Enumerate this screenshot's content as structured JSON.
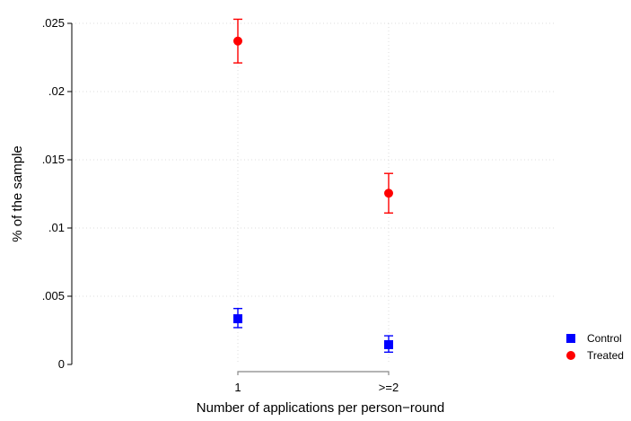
{
  "chart_data": {
    "type": "scatter",
    "xlabel": "Number of applications per person−round",
    "ylabel": "% of the sample",
    "categories": [
      "1",
      ">=2"
    ],
    "ylim": [
      0,
      0.025
    ],
    "yticks": [
      0,
      0.005,
      0.01,
      0.015,
      0.02,
      0.025
    ],
    "ytick_labels": [
      "0",
      ".005",
      ".01",
      ".015",
      ".02",
      ".025"
    ],
    "grid": true,
    "legend_position": "bottom-right",
    "series": [
      {
        "name": "Control",
        "color": "#0000ff",
        "marker": "square",
        "points": [
          {
            "category": "1",
            "value": 0.00335,
            "ci_low": 0.0027,
            "ci_high": 0.0041
          },
          {
            "category": ">=2",
            "value": 0.00145,
            "ci_low": 0.0009,
            "ci_high": 0.0021
          }
        ]
      },
      {
        "name": "Treated",
        "color": "#ff0000",
        "marker": "circle",
        "points": [
          {
            "category": "1",
            "value": 0.0237,
            "ci_low": 0.0221,
            "ci_high": 0.0253
          },
          {
            "category": ">=2",
            "value": 0.01255,
            "ci_low": 0.0111,
            "ci_high": 0.014
          }
        ]
      }
    ]
  }
}
